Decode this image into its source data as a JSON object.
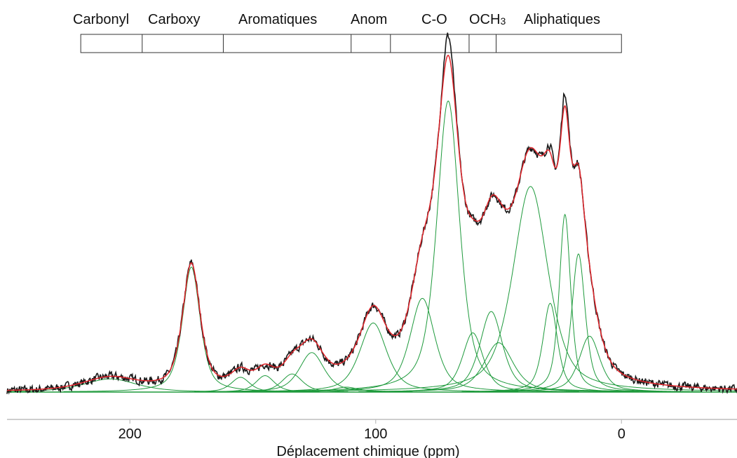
{
  "chart_data": {
    "type": "line",
    "xlabel": "Déplacement chimique (ppm)",
    "ylabel": "",
    "x_reversed": true,
    "xlim": [
      250,
      -47
    ],
    "ylim": [
      0,
      1
    ],
    "x_ticks": [
      200,
      100,
      0
    ],
    "x_tick_labels": [
      "200",
      "100",
      "0"
    ],
    "grid": false,
    "legend": "none",
    "region_labels": [
      "Carbonyl",
      "Carboxy",
      "Aromatiques",
      "Anom",
      "C-O",
      "OCH",
      "Aliphatiques"
    ],
    "region_subscript": "3",
    "region_boundaries_ppm": [
      220,
      195,
      162,
      110,
      94,
      62,
      51,
      0
    ],
    "colors": {
      "experimental": "#1a1a1a",
      "fit": "#e0252b",
      "components": "#1e9a3c",
      "frame": "#333333"
    },
    "components": [
      {
        "center": 208,
        "amplitude": 0.04,
        "fwhm": 26
      },
      {
        "center": 175,
        "amplitude": 0.38,
        "fwhm": 8.5
      },
      {
        "center": 155,
        "amplitude": 0.045,
        "fwhm": 9
      },
      {
        "center": 145,
        "amplitude": 0.05,
        "fwhm": 9
      },
      {
        "center": 134,
        "amplitude": 0.055,
        "fwhm": 10
      },
      {
        "center": 126,
        "amplitude": 0.12,
        "fwhm": 12
      },
      {
        "center": 112,
        "amplitude": 0.015,
        "fwhm": 12
      },
      {
        "center": 101,
        "amplitude": 0.21,
        "fwhm": 13
      },
      {
        "center": 81,
        "amplitude": 0.285,
        "fwhm": 12
      },
      {
        "center": 70.5,
        "amplitude": 0.885,
        "fwhm": 11
      },
      {
        "center": 60.5,
        "amplitude": 0.18,
        "fwhm": 10
      },
      {
        "center": 53,
        "amplitude": 0.245,
        "fwhm": 11
      },
      {
        "center": 50,
        "amplitude": 0.15,
        "fwhm": 14
      },
      {
        "center": 37,
        "amplitude": 0.625,
        "fwhm": 17
      },
      {
        "center": 29,
        "amplitude": 0.27,
        "fwhm": 7
      },
      {
        "center": 23,
        "amplitude": 0.54,
        "fwhm": 5.5
      },
      {
        "center": 17.5,
        "amplitude": 0.42,
        "fwhm": 6.5
      },
      {
        "center": 13,
        "amplitude": 0.17,
        "fwhm": 10
      }
    ]
  }
}
